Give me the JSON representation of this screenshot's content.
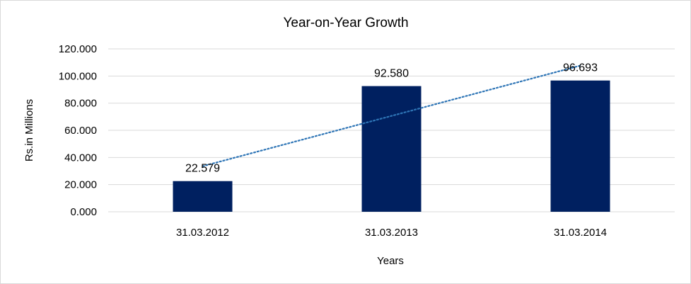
{
  "chart_data": {
    "type": "bar",
    "title": "Year-on-Year Growth",
    "xlabel": "Years",
    "ylabel": "Rs.in Millions",
    "categories": [
      "31.03.2012",
      "31.03.2013",
      "31.03.2014"
    ],
    "values": [
      22.579,
      92.58,
      96.693
    ],
    "value_labels": [
      "22.579",
      "92.580",
      "96.693"
    ],
    "ylim": [
      0,
      120
    ],
    "yticks": [
      0,
      20,
      40,
      60,
      80,
      100,
      120
    ],
    "ytick_labels": [
      "0.000",
      "20.000",
      "40.000",
      "60.000",
      "80.000",
      "100.000",
      "120.000"
    ],
    "grid": true,
    "legend": "none",
    "trendline": "linear, dotted",
    "colors": {
      "bar": "#002060",
      "trendline": "#2e75b6"
    }
  }
}
